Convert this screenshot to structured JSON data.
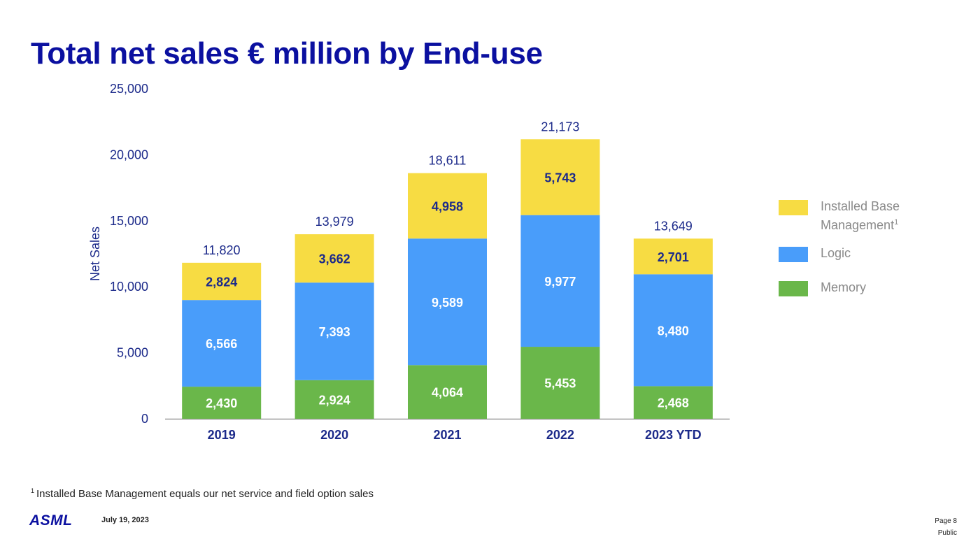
{
  "title": "Total net sales € million by End-use",
  "chart_data": {
    "type": "bar",
    "stacked": true,
    "categories": [
      "2019",
      "2020",
      "2021",
      "2022",
      "2023 YTD"
    ],
    "series": [
      {
        "name": "Memory",
        "values": [
          2430,
          2924,
          4064,
          5453,
          2468
        ],
        "labels": [
          "2,430",
          "2,924",
          "4,064",
          "5,453",
          "2,468"
        ],
        "color": "#6ab74a",
        "label_color": "#ffffff"
      },
      {
        "name": "Logic",
        "values": [
          6566,
          7393,
          9589,
          9977,
          8480
        ],
        "labels": [
          "6,566",
          "7,393",
          "9,589",
          "9,977",
          "8,480"
        ],
        "color": "#499dfa",
        "label_color": "#ffffff"
      },
      {
        "name": "Installed Base Management",
        "values": [
          2824,
          3662,
          4958,
          5743,
          2701
        ],
        "labels": [
          "2,824",
          "3,662",
          "4,958",
          "5,743",
          "2,701"
        ],
        "color": "#f7dc43",
        "label_color": "#1c2a8a"
      }
    ],
    "totals": [
      11820,
      13979,
      18611,
      21173,
      13649
    ],
    "total_labels": [
      "11,820",
      "13,979",
      "18,611",
      "21,173",
      "13,649"
    ],
    "ylabel": "Net Sales",
    "xlabel": "",
    "ylim": [
      0,
      25000
    ],
    "yticks": [
      0,
      5000,
      10000,
      15000,
      20000,
      25000
    ],
    "ytick_labels": [
      "0",
      "5,000",
      "10,000",
      "15,000",
      "20,000",
      "25,000"
    ],
    "grid": false,
    "legend_placement": "right"
  },
  "legend": [
    {
      "label": "Installed Base",
      "label2": "Management",
      "superscript": "1",
      "color": "#f7dc43"
    },
    {
      "label": "Logic",
      "color": "#499dfa"
    },
    {
      "label": "Memory",
      "color": "#6ab74a"
    }
  ],
  "footnote": {
    "marker": "1",
    "text": "Installed Base Management equals our net service and field option sales"
  },
  "footer": {
    "logo": "ASML",
    "date": "July 19, 2023",
    "page": "Page 8",
    "classification": "Public"
  }
}
